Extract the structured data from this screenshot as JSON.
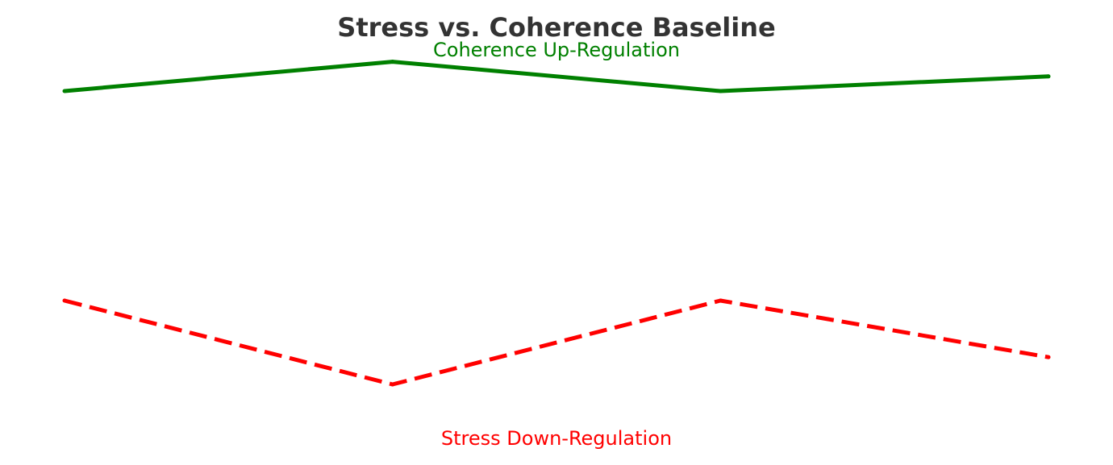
{
  "chart_data": {
    "type": "line",
    "title": "Stress vs. Coherence Baseline",
    "xlabel": "",
    "ylabel": "",
    "x": [
      0,
      1,
      2,
      3
    ],
    "ylim": [
      0,
      1
    ],
    "grid": false,
    "axes_visible": false,
    "series": [
      {
        "name": "Coherence Up-Regulation",
        "values": [
          0.85,
          0.92,
          0.85,
          0.885
        ],
        "color": "#008000",
        "line_style": "solid"
      },
      {
        "name": "Stress Down-Regulation",
        "values": [
          0.35,
          0.15,
          0.35,
          0.215
        ],
        "color": "#ff0000",
        "line_style": "dashed"
      }
    ]
  },
  "colors": {
    "title": "#333333",
    "background": "#ffffff"
  }
}
